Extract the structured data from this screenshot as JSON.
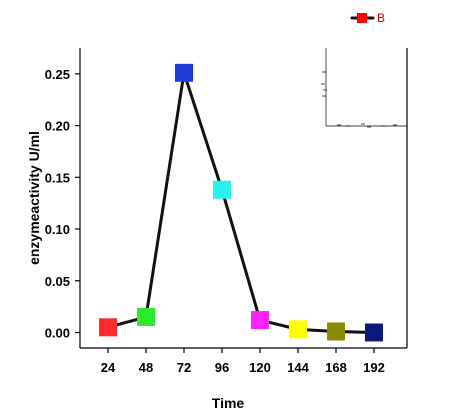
{
  "chart_data": {
    "type": "line",
    "x": [
      "24",
      "48",
      "72",
      "96",
      "120",
      "144",
      "168",
      "192"
    ],
    "categories": [
      "24",
      "48",
      "72",
      "96",
      "120",
      "144",
      "168",
      "192"
    ],
    "series": [
      {
        "name": "B",
        "values": [
          0.005,
          0.015,
          0.251,
          0.138,
          0.012,
          0.003,
          0.001,
          0.0
        ],
        "marker_colors": [
          "#ff2b2b",
          "#2ee82e",
          "#1e3bd6",
          "#2bf0f0",
          "#ff22ff",
          "#ffff00",
          "#8b8b00",
          "#0b1a7a"
        ]
      }
    ],
    "xlabel": "Time",
    "ylabel": "enzymeactivity U/ml",
    "ylim": [
      -0.015,
      0.275
    ],
    "yticks": [
      "0.00",
      "0.05",
      "0.10",
      "0.15",
      "0.20",
      "0.25"
    ],
    "ytick_values": [
      0.0,
      0.05,
      0.1,
      0.15,
      0.2,
      0.25
    ],
    "grid": false,
    "legend": {
      "placement": "top-right",
      "label": "B",
      "marker_color": "#ff0000"
    }
  }
}
